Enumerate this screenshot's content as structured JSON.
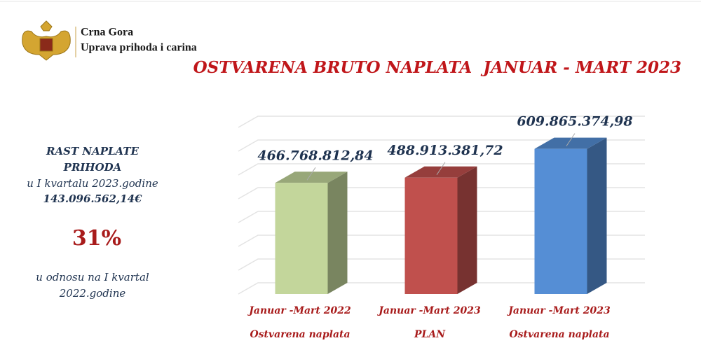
{
  "header": {
    "line1": "Crna Gora",
    "line2": "Uprava prihoda i carina"
  },
  "side_panel": {
    "line1": "RAST NAPLATE",
    "line2": "PRIHODA",
    "line3": "u I kvartalu 2023.godine",
    "amount": "143.096.562,14€",
    "percent": "31%",
    "line4": "u odnosu na I kvartal",
    "line5": "2022.godine"
  },
  "chart_data": {
    "type": "bar3d",
    "title": "OSTVARENA BRUTO NAPLATA  JANUAR - MART 2023",
    "categories": [
      "Januar -Mart 2022",
      "Januar -Mart 2023",
      "Januar -Mart 2023"
    ],
    "category_notes": [
      "Ostvarena naplata",
      "PLAN",
      "Ostvarena naplata"
    ],
    "values": [
      466768812.84,
      488913381.72,
      609865374.98
    ],
    "value_labels": [
      "466.768.812,84",
      "488.913.381,72",
      "609.865.374,98"
    ],
    "colors": [
      "#c3d69b",
      "#c0504d",
      "#558ed5"
    ],
    "ylim": [
      0,
      700000000
    ],
    "yticks": [
      0,
      100000000,
      200000000,
      300000000,
      400000000,
      500000000,
      600000000,
      700000000
    ],
    "grid": true
  }
}
